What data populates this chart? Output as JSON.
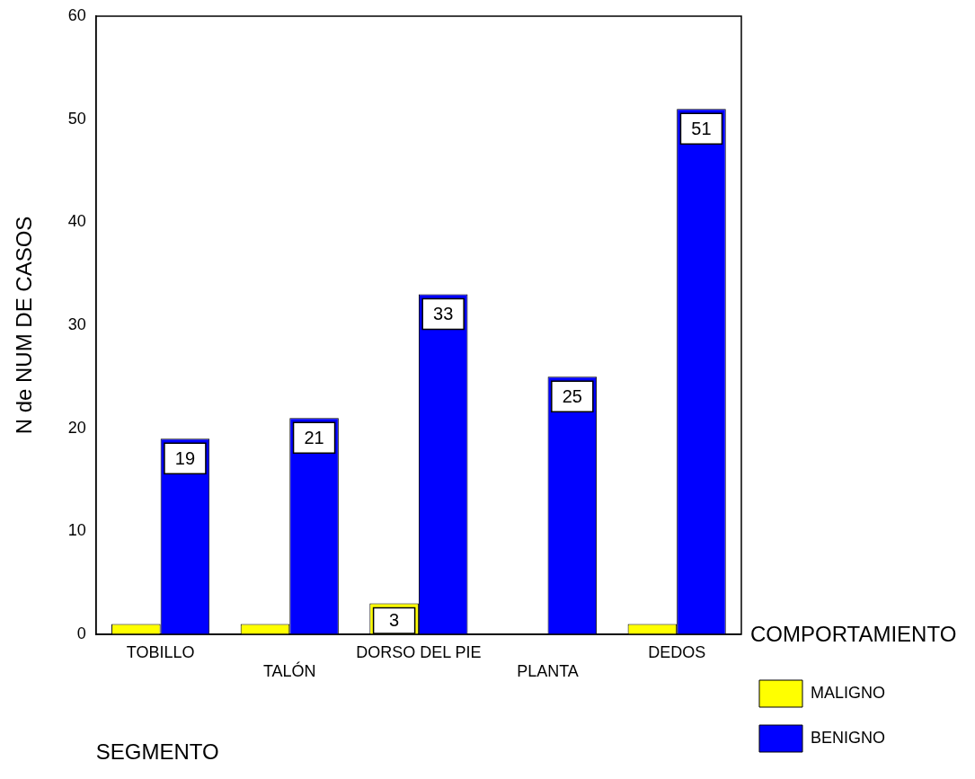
{
  "chart_data": {
    "type": "bar",
    "ylabel": "N de NUM DE CASOS",
    "xlabel": "SEGMENTO",
    "legend_title": "COMPORTAMIENTO",
    "categories": [
      "TOBILLO",
      "TALÓN",
      "DORSO DEL PIE",
      "PLANTA",
      "DEDOS"
    ],
    "series": [
      {
        "name": "MALIGNO",
        "color": "#ffff00",
        "values": [
          1,
          1,
          3,
          0,
          1
        ],
        "value_labels": [
          null,
          null,
          "3",
          null,
          null
        ]
      },
      {
        "name": "BENIGNO",
        "color": "#0000ff",
        "values": [
          19,
          21,
          33,
          25,
          51
        ],
        "value_labels": [
          "19",
          "21",
          "33",
          "25",
          "51"
        ]
      }
    ],
    "ylim": [
      0,
      60
    ],
    "yticks": [
      0,
      10,
      20,
      30,
      40,
      50,
      60
    ],
    "grid": false,
    "legend": "bottom right"
  }
}
